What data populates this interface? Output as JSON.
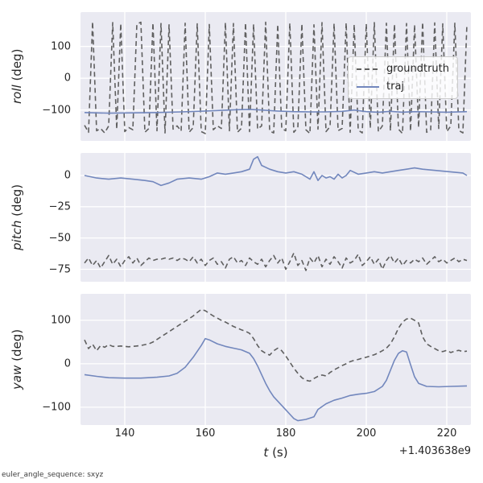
{
  "figure": {
    "background": "#ffffff",
    "axes_background": "#eaeaf2",
    "grid_color": "#ffffff",
    "xlabel_var": "t",
    "xlabel_unit": " (s)",
    "x_offset_text": "+1.403638e9",
    "footer_note": "euler_angle_sequence: sxyz"
  },
  "colors": {
    "groundtruth": "#5f5f5f",
    "traj": "#7287bd"
  },
  "legend": {
    "entries": [
      {
        "label": "groundtruth",
        "style": "dashed"
      },
      {
        "label": "traj",
        "style": "solid"
      }
    ]
  },
  "chart_data": [
    {
      "type": "line",
      "name": "roll",
      "ylabel_var": "roll",
      "ylabel_unit": " (deg)",
      "xlim": [
        129,
        226
      ],
      "ylim": [
        -197,
        208
      ],
      "xticks": [
        140,
        160,
        180,
        200,
        220
      ],
      "yticks": [
        100,
        0,
        -100
      ],
      "series": [
        {
          "name": "groundtruth",
          "style": "dashed",
          "t_start": 130,
          "t_step": 1,
          "values": [
            -148,
            -170,
            178,
            -165,
            -158,
            -172,
            -150,
            175,
            -160,
            172,
            -168,
            -155,
            -162,
            170,
            176,
            -170,
            -158,
            174,
            -165,
            172,
            -172,
            168,
            -160,
            -150,
            -166,
            173,
            -170,
            -155,
            171,
            -168,
            -174,
            169,
            -162,
            -150,
            -158,
            175,
            -165,
            172,
            -170,
            -157,
            174,
            -168,
            170,
            -160,
            -150,
            176,
            -166,
            -172,
            169,
            -158,
            -165,
            173,
            -170,
            -155,
            171,
            -162,
            -174,
            168,
            -160,
            175,
            -168,
            -152,
            172,
            -165,
            -158,
            174,
            -170,
            169,
            -163,
            -172,
            171,
            -157,
            175,
            -168,
            -150,
            173,
            -165,
            170,
            -160,
            -174,
            172,
            -166,
            168,
            -155,
            176,
            -170,
            -162,
            174,
            -158,
            171,
            -168,
            -150,
            173,
            -164,
            -172,
            170
          ]
        },
        {
          "name": "traj",
          "style": "solid",
          "t": [
            130,
            136,
            142,
            148,
            154,
            160,
            164,
            168,
            171,
            174,
            178,
            182,
            186,
            190,
            194,
            197,
            200,
            203,
            206,
            209,
            212,
            216,
            220,
            225
          ],
          "values": [
            -108,
            -110,
            -109,
            -108,
            -106,
            -103,
            -101,
            -99,
            -98,
            -100,
            -103,
            -105,
            -106,
            -106,
            -104,
            -100,
            -105,
            -107,
            -104,
            -107,
            -105,
            -106,
            -107,
            -105
          ]
        }
      ]
    },
    {
      "type": "line",
      "name": "pitch",
      "ylabel_var": "pitch",
      "ylabel_unit": " (deg)",
      "xlim": [
        129,
        226
      ],
      "ylim": [
        -85,
        18
      ],
      "xticks": [
        140,
        160,
        180,
        200,
        220
      ],
      "yticks": [
        0,
        -25,
        -50,
        -75
      ],
      "series": [
        {
          "name": "groundtruth",
          "style": "dashed",
          "t_start": 130,
          "t_step": 1,
          "values": [
            -70,
            -66,
            -72,
            -68,
            -74,
            -69,
            -64,
            -71,
            -67,
            -73,
            -68,
            -65,
            -70,
            -66,
            -72,
            -69,
            -66,
            -68,
            -67,
            -67,
            -66,
            -67,
            -66,
            -68,
            -66,
            -67,
            -69,
            -65,
            -70,
            -67,
            -72,
            -68,
            -66,
            -71,
            -69,
            -74,
            -67,
            -65,
            -70,
            -68,
            -72,
            -66,
            -69,
            -71,
            -67,
            -73,
            -68,
            -64,
            -70,
            -66,
            -75,
            -69,
            -62,
            -72,
            -68,
            -76,
            -66,
            -70,
            -64,
            -73,
            -67,
            -71,
            -65,
            -69,
            -74,
            -66,
            -70,
            -68,
            -63,
            -72,
            -69,
            -65,
            -71,
            -67,
            -75,
            -68,
            -64,
            -70,
            -66,
            -72,
            -68,
            -70,
            -67,
            -69,
            -66,
            -71,
            -68,
            -65,
            -69,
            -67,
            -70,
            -68,
            -66,
            -69,
            -67,
            -68
          ]
        },
        {
          "name": "traj",
          "style": "solid",
          "t": [
            130,
            133,
            136,
            139,
            142,
            145,
            147,
            149,
            151,
            153,
            156,
            159,
            161,
            163,
            165,
            167,
            169,
            171,
            172,
            173,
            174,
            176,
            178,
            180,
            182,
            184,
            185,
            186,
            187,
            188,
            189,
            190,
            191,
            192,
            193,
            194,
            195,
            196,
            198,
            200,
            202,
            204,
            206,
            208,
            210,
            212,
            214,
            224,
            225
          ],
          "values": [
            0,
            -2,
            -3,
            -2,
            -3,
            -4,
            -5,
            -8,
            -6,
            -3,
            -2,
            -3,
            -1,
            2,
            1,
            2,
            3,
            5,
            13,
            15,
            8,
            5,
            3,
            2,
            3,
            1,
            -1,
            -3,
            3,
            -4,
            0,
            -2,
            -1,
            -3,
            1,
            -2,
            0,
            4,
            1,
            2,
            3,
            2,
            3,
            4,
            5,
            6,
            5,
            2,
            0
          ]
        }
      ]
    },
    {
      "type": "line",
      "name": "yaw",
      "ylabel_var": "yaw",
      "ylabel_unit": " (deg)",
      "xlim": [
        129,
        226
      ],
      "ylim": [
        -141,
        161
      ],
      "xticks": [
        140,
        160,
        180,
        200,
        220
      ],
      "yticks": [
        100,
        0,
        -100
      ],
      "series": [
        {
          "name": "groundtruth",
          "style": "dashed",
          "t_start": 130,
          "t_step": 1,
          "values": [
            55,
            35,
            45,
            30,
            42,
            38,
            44,
            40,
            40,
            41,
            40,
            39,
            40,
            41,
            42,
            44,
            46,
            50,
            56,
            62,
            68,
            74,
            80,
            86,
            92,
            98,
            104,
            110,
            118,
            125,
            122,
            116,
            110,
            105,
            100,
            96,
            91,
            86,
            82,
            78,
            75,
            70,
            58,
            42,
            30,
            24,
            20,
            30,
            36,
            30,
            18,
            4,
            -10,
            -22,
            -32,
            -38,
            -40,
            -34,
            -29,
            -26,
            -28,
            -20,
            -14,
            -9,
            -4,
            0,
            5,
            8,
            10,
            13,
            15,
            18,
            21,
            25,
            30,
            36,
            46,
            62,
            82,
            96,
            103,
            105,
            100,
            94,
            62,
            46,
            40,
            35,
            30,
            28,
            31,
            26,
            29,
            31,
            28,
            29
          ]
        },
        {
          "name": "traj",
          "style": "solid",
          "t": [
            130,
            133,
            136,
            140,
            144,
            148,
            151,
            153,
            155,
            157,
            159,
            160,
            161,
            163,
            165,
            167,
            169,
            171,
            172,
            173,
            174,
            175,
            176,
            177,
            178,
            179,
            180,
            181,
            182,
            183,
            185,
            187,
            188,
            190,
            192,
            194,
            196,
            198,
            200,
            202,
            204,
            205,
            206,
            207,
            208,
            209,
            210,
            211,
            212,
            213,
            215,
            218,
            221,
            225
          ],
          "values": [
            -25,
            -29,
            -32,
            -33,
            -33,
            -31,
            -28,
            -22,
            -8,
            15,
            42,
            58,
            55,
            46,
            40,
            36,
            32,
            24,
            12,
            -5,
            -25,
            -45,
            -62,
            -76,
            -86,
            -96,
            -106,
            -116,
            -126,
            -131,
            -128,
            -122,
            -105,
            -92,
            -84,
            -79,
            -73,
            -70,
            -68,
            -64,
            -52,
            -38,
            -15,
            8,
            24,
            30,
            27,
            -2,
            -30,
            -45,
            -52,
            -53,
            -52,
            -51
          ]
        }
      ]
    }
  ]
}
